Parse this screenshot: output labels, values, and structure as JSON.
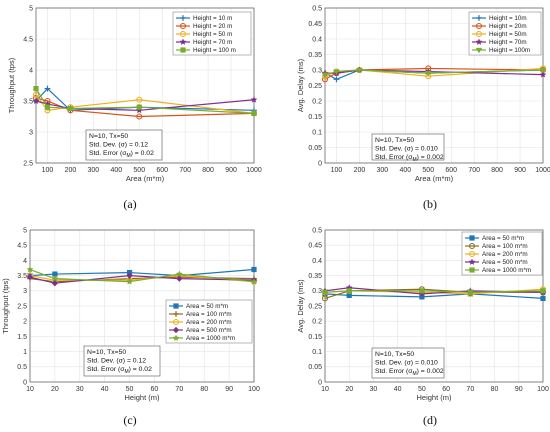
{
  "chart_data": [
    {
      "type": "line",
      "panel_label": "(a)",
      "xlabel": "Area (m*m)",
      "ylabel": "Throughput (tps)",
      "xlim": [
        50,
        1000
      ],
      "ylim": [
        2.5,
        5
      ],
      "xticks": [
        "100",
        "200",
        "300",
        "400",
        "500",
        "600",
        "700",
        "800",
        "900",
        "1000"
      ],
      "yticks": [
        "2.5",
        "3",
        "3.5",
        "4",
        "4.5",
        "5"
      ],
      "ytick_values": [
        2.5,
        3,
        3.5,
        4,
        4.5,
        5
      ],
      "xtick_values": [
        100,
        200,
        300,
        400,
        500,
        600,
        700,
        800,
        900,
        1000
      ],
      "grid": true,
      "legend_position": "top-right",
      "stats": [
        "N=10, Tx=50",
        "Std. Dev. (σ) = 0.12",
        "Std. Error (σ",
        "M",
        ") = 0.02"
      ],
      "x": [
        50,
        100,
        200,
        500,
        1000
      ],
      "series": [
        {
          "name": "Height = 10 m",
          "color": "#1f77b4",
          "marker": "plus",
          "values": [
            3.5,
            3.7,
            3.35,
            3.4,
            3.35
          ]
        },
        {
          "name": "Height = 20 m",
          "color": "#d95319",
          "marker": "circle",
          "values": [
            3.55,
            3.5,
            3.35,
            3.25,
            3.3
          ]
        },
        {
          "name": "Height = 50 m",
          "color": "#edb120",
          "marker": "circle",
          "values": [
            3.6,
            3.35,
            3.4,
            3.52,
            3.3
          ]
        },
        {
          "name": "Height = 70 m",
          "color": "#7e2f8e",
          "marker": "star",
          "values": [
            3.5,
            3.45,
            3.38,
            3.35,
            3.52
          ]
        },
        {
          "name": "Height = 100 m",
          "color": "#77ac30",
          "marker": "square",
          "values": [
            3.7,
            3.4,
            3.38,
            3.4,
            3.3
          ]
        }
      ]
    },
    {
      "type": "line",
      "panel_label": "(b)",
      "xlabel": "Area (m*m)",
      "ylabel": "Avg. Delay (ms)",
      "xlim": [
        50,
        1000
      ],
      "ylim": [
        0,
        0.5
      ],
      "xticks": [
        "100",
        "200",
        "300",
        "400",
        "500",
        "600",
        "700",
        "800",
        "900",
        "1000"
      ],
      "yticks": [
        "0",
        "0.05",
        "0.1",
        "0.15",
        "0.2",
        "0.25",
        "0.3",
        "0.35",
        "0.4",
        "0.45",
        "0.5"
      ],
      "ytick_values": [
        0,
        0.05,
        0.1,
        0.15,
        0.2,
        0.25,
        0.3,
        0.35,
        0.4,
        0.45,
        0.5
      ],
      "xtick_values": [
        100,
        200,
        300,
        400,
        500,
        600,
        700,
        800,
        900,
        1000
      ],
      "grid": true,
      "legend_position": "top-right",
      "stats": [
        "N=10, Tx=50",
        "Std. Dev. (σ) = 0.010",
        "Std. Error (σ",
        "M",
        ") = 0.002"
      ],
      "x": [
        50,
        100,
        200,
        500,
        1000
      ],
      "series": [
        {
          "name": "Height = 10m",
          "color": "#1f77b4",
          "marker": "plus",
          "values": [
            0.29,
            0.27,
            0.3,
            0.29,
            0.3
          ]
        },
        {
          "name": "Height = 20m",
          "color": "#d95319",
          "marker": "circle",
          "values": [
            0.27,
            0.29,
            0.3,
            0.305,
            0.3
          ]
        },
        {
          "name": "Height = 50m",
          "color": "#edb120",
          "marker": "circle",
          "values": [
            0.28,
            0.295,
            0.3,
            0.28,
            0.305
          ]
        },
        {
          "name": "Height = 70m",
          "color": "#7e2f8e",
          "marker": "star",
          "values": [
            0.29,
            0.29,
            0.3,
            0.295,
            0.285
          ]
        },
        {
          "name": "Height = 100m",
          "color": "#77ac30",
          "marker": "triangle",
          "values": [
            0.285,
            0.295,
            0.3,
            0.29,
            0.3
          ]
        }
      ]
    },
    {
      "type": "line",
      "panel_label": "(c)",
      "xlabel": "Height (m)",
      "ylabel": "Throughput (tps)",
      "xlim": [
        10,
        100
      ],
      "ylim": [
        0,
        5
      ],
      "xticks": [
        "10",
        "20",
        "30",
        "40",
        "50",
        "60",
        "70",
        "80",
        "90",
        "100"
      ],
      "yticks": [
        "0",
        "0.5",
        "1",
        "1.5",
        "2",
        "2.5",
        "3",
        "3.5",
        "4",
        "4.5",
        "5"
      ],
      "ytick_values": [
        0,
        0.5,
        1,
        1.5,
        2,
        2.5,
        3,
        3.5,
        4,
        4.5,
        5
      ],
      "xtick_values": [
        10,
        20,
        30,
        40,
        50,
        60,
        70,
        80,
        90,
        100
      ],
      "grid": true,
      "legend_position": "center-right",
      "stats": [
        "N=10, Tx=50",
        "Std. Dev. (σ) = 0.12",
        "Std. Error (σ",
        "M",
        ") = 0.02"
      ],
      "x": [
        10,
        20,
        50,
        70,
        100
      ],
      "series": [
        {
          "name": "Area = 50 m*m",
          "color": "#1f77b4",
          "marker": "square",
          "values": [
            3.5,
            3.55,
            3.6,
            3.5,
            3.7
          ]
        },
        {
          "name": "Area = 100 m*m",
          "color": "#8c6d1f",
          "marker": "plus",
          "values": [
            3.4,
            3.3,
            3.4,
            3.45,
            3.4
          ]
        },
        {
          "name": "Area = 200 m*m",
          "color": "#edb120",
          "marker": "circle",
          "values": [
            3.5,
            3.35,
            3.35,
            3.5,
            3.3
          ]
        },
        {
          "name": "Area = 500 m*m",
          "color": "#7e2f8e",
          "marker": "diamond",
          "values": [
            3.45,
            3.25,
            3.5,
            3.4,
            3.35
          ]
        },
        {
          "name": "Area = 1000 m*m",
          "color": "#77ac30",
          "marker": "star",
          "values": [
            3.7,
            3.4,
            3.3,
            3.55,
            3.3
          ]
        }
      ]
    },
    {
      "type": "line",
      "panel_label": "(d)",
      "xlabel": "Height (m)",
      "ylabel": "Avg. Delay (ms)",
      "xlim": [
        10,
        100
      ],
      "ylim": [
        0,
        0.5
      ],
      "xticks": [
        "10",
        "20",
        "30",
        "40",
        "50",
        "60",
        "70",
        "80",
        "90",
        "100"
      ],
      "yticks": [
        "0",
        "0.05",
        "0.1",
        "0.15",
        "0.2",
        "0.25",
        "0.3",
        "0.35",
        "0.4",
        "0.45",
        "0.5"
      ],
      "ytick_values": [
        0,
        0.05,
        0.1,
        0.15,
        0.2,
        0.25,
        0.3,
        0.35,
        0.4,
        0.45,
        0.5
      ],
      "xtick_values": [
        10,
        20,
        30,
        40,
        50,
        60,
        70,
        80,
        90,
        100
      ],
      "grid": true,
      "legend_position": "top-right",
      "stats": [
        "N=10, Tx=50",
        "Std. Dev. (σ) = 0.010",
        "Std. Error (σ",
        "M",
        ") = 0.002"
      ],
      "x": [
        10,
        20,
        50,
        70,
        100
      ],
      "series": [
        {
          "name": "Area = 50 m*m",
          "color": "#1f77b4",
          "marker": "square",
          "values": [
            0.29,
            0.285,
            0.28,
            0.29,
            0.275
          ]
        },
        {
          "name": "Area = 100 m*m",
          "color": "#8c6d1f",
          "marker": "circle",
          "values": [
            0.275,
            0.3,
            0.305,
            0.295,
            0.295
          ]
        },
        {
          "name": "Area = 200 m*m",
          "color": "#edb120",
          "marker": "circle",
          "values": [
            0.295,
            0.3,
            0.295,
            0.29,
            0.305
          ]
        },
        {
          "name": "Area = 500 m*m",
          "color": "#7e2f8e",
          "marker": "star",
          "values": [
            0.3,
            0.31,
            0.29,
            0.3,
            0.295
          ]
        },
        {
          "name": "Area = 1000 m*m",
          "color": "#77ac30",
          "marker": "square",
          "values": [
            0.295,
            0.3,
            0.3,
            0.295,
            0.3
          ]
        }
      ]
    }
  ]
}
